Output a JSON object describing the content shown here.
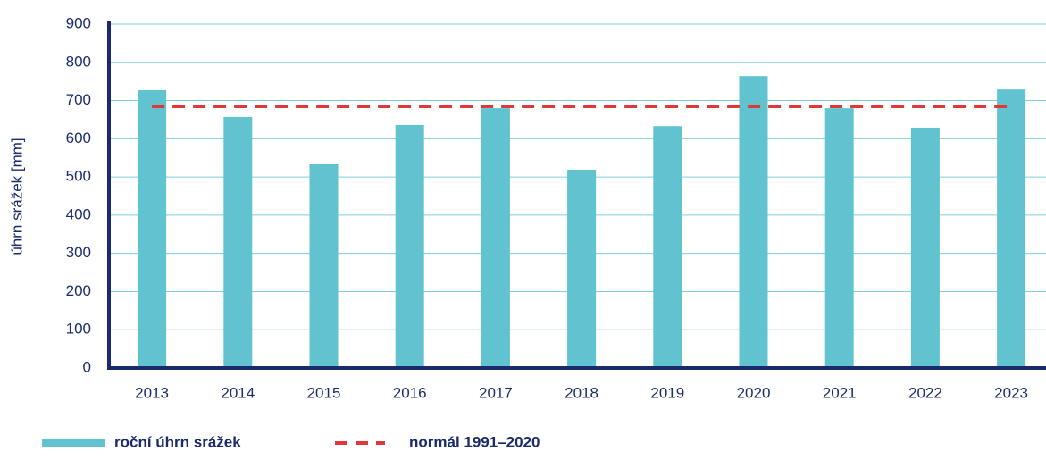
{
  "chart_data": {
    "type": "bar",
    "y_label": "úhrn srážek [mm]",
    "categories": [
      "2013",
      "2014",
      "2015",
      "2016",
      "2017",
      "2018",
      "2019",
      "2020",
      "2021",
      "2022",
      "2023"
    ],
    "series": [
      {
        "name": "roční úhrn srážek",
        "type": "bar",
        "color": "#62c3d0",
        "values": [
          727,
          657,
          533,
          636,
          680,
          519,
          633,
          764,
          680,
          629,
          729
        ]
      },
      {
        "name": "normál 1991–2020",
        "type": "line",
        "dashed": true,
        "color": "#e0383a",
        "values": [
          685,
          685,
          685,
          685,
          685,
          685,
          685,
          685,
          685,
          685,
          685
        ]
      }
    ],
    "ylim": [
      0,
      900
    ],
    "yticks": [
      0,
      100,
      200,
      300,
      400,
      500,
      600,
      700,
      800,
      900
    ],
    "grid": true
  }
}
